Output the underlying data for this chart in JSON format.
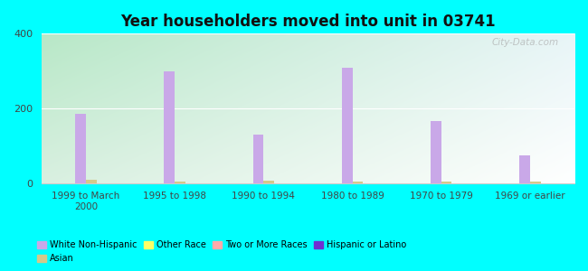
{
  "title": "Year householders moved into unit in 03741",
  "categories": [
    "1999 to March\n2000",
    "1995 to 1998",
    "1990 to 1994",
    "1980 to 1989",
    "1970 to 1979",
    "1969 or earlier"
  ],
  "white_non_hispanic": [
    185,
    300,
    130,
    310,
    165,
    75
  ],
  "hispanic_or_latino": [
    0,
    0,
    0,
    0,
    0,
    0
  ],
  "asian": [
    8,
    5,
    6,
    5,
    4,
    4
  ],
  "other_race": [
    0,
    0,
    0,
    0,
    0,
    0
  ],
  "two_or_more": [
    0,
    0,
    0,
    0,
    0,
    0
  ],
  "bar_width": 0.12,
  "ylim": [
    0,
    400
  ],
  "yticks": [
    0,
    200,
    400
  ],
  "bg_color": "#00FFFF",
  "plot_bg_tl": "#b8e8c8",
  "plot_bg_tr": "#e8f4f8",
  "plot_bg_bl": "#d8f0e0",
  "plot_bg_br": "#ffffff",
  "white_color": "#c9a8e8",
  "hispanic_color": "#7030d0",
  "asian_color": "#d4c98a",
  "other_race_color": "#ffff66",
  "two_or_more_color": "#ffaaaa",
  "watermark": "City-Data.com",
  "legend_items": [
    {
      "label": "White Non-Hispanic",
      "color": "#c9a8e8"
    },
    {
      "label": "Asian",
      "color": "#d4c98a"
    },
    {
      "label": "Other Race",
      "color": "#ffff66"
    },
    {
      "label": "Two or More Races",
      "color": "#ffaaaa"
    },
    {
      "label": "Hispanic or Latino",
      "color": "#7030d0"
    }
  ]
}
